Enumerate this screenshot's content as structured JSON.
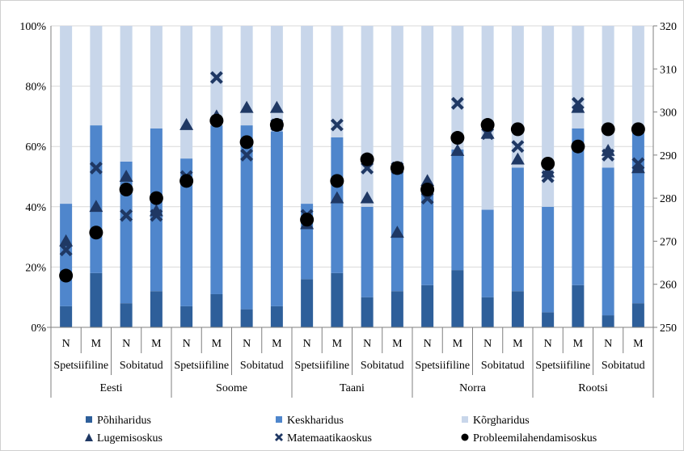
{
  "chart_data": {
    "type": "bar",
    "stacked": true,
    "percent_stacked": true,
    "categories": [
      "N",
      "M",
      "N",
      "M",
      "N",
      "M",
      "N",
      "M",
      "N",
      "M",
      "N",
      "M",
      "N",
      "M",
      "N",
      "M",
      "N",
      "M",
      "N",
      "M"
    ],
    "subgroups": [
      "Spetsiifiline",
      "Sobitatud",
      "Spetsiifiline",
      "Sobitatud",
      "Spetsiifiline",
      "Sobitatud",
      "Spetsiifiline",
      "Sobitatud",
      "Spetsiifiline",
      "Sobitatud"
    ],
    "groups": [
      "Eesti",
      "Soome",
      "Taani",
      "Norra",
      "Rootsi"
    ],
    "left_axis": {
      "ylim": [
        0,
        100
      ],
      "ticks": [
        "0%",
        "20%",
        "40%",
        "60%",
        "80%",
        "100%"
      ]
    },
    "right_axis": {
      "ylim": [
        250,
        320
      ],
      "ticks": [
        "250",
        "260",
        "270",
        "280",
        "290",
        "300",
        "310",
        "320"
      ]
    },
    "bar_series": [
      {
        "name": "Põhiharidus",
        "color": "#2e5f9a",
        "values": [
          7,
          18,
          8,
          12,
          7,
          11,
          6,
          7,
          16,
          18,
          10,
          12,
          14,
          19,
          10,
          12,
          5,
          14,
          4,
          8
        ]
      },
      {
        "name": "Keskharidus",
        "color": "#4f86cc",
        "values": [
          34,
          49,
          47,
          54,
          49,
          56,
          61,
          58,
          25,
          45,
          30,
          40,
          31,
          40,
          29,
          41,
          35,
          52,
          49,
          57
        ]
      },
      {
        "name": "Kõrgharidus",
        "color": "#c8d6ea",
        "values": [
          59,
          33,
          45,
          34,
          44,
          33,
          33,
          35,
          59,
          37,
          60,
          48,
          55,
          41,
          61,
          47,
          60,
          34,
          47,
          35
        ]
      }
    ],
    "point_series": [
      {
        "name": "Lugemisoskus",
        "marker": "triangle",
        "color": "#1f3864",
        "values": [
          270,
          278,
          285,
          277,
          297,
          299,
          301,
          301,
          274,
          280,
          280,
          272,
          284,
          291,
          295,
          289,
          286,
          301,
          291,
          287
        ]
      },
      {
        "name": "Matemaatikaoskus",
        "marker": "x",
        "color": "#1f3864",
        "values": [
          268,
          287,
          276,
          276,
          285,
          308,
          290,
          297,
          276,
          297,
          287,
          287,
          280,
          302,
          295,
          292,
          285,
          302,
          290,
          288
        ]
      },
      {
        "name": "Probleemilahendamisoskus",
        "marker": "circle",
        "color": "#000000",
        "values": [
          262,
          272,
          282,
          280,
          284,
          298,
          293,
          297,
          275,
          284,
          289,
          287,
          282,
          294,
          297,
          296,
          288,
          292,
          296,
          296
        ]
      }
    ]
  },
  "colors": {
    "grid": "#d9d9d9",
    "axis": "#7f7f7f"
  }
}
